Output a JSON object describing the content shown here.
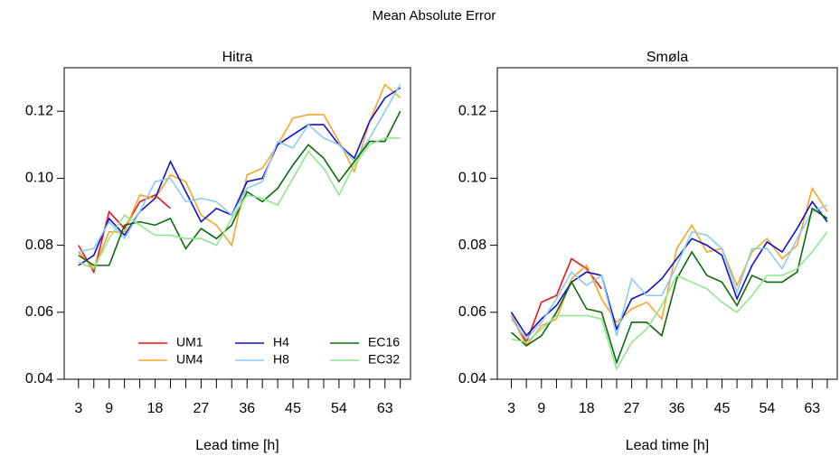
{
  "title": "Mean Absolute Error",
  "chart_data": [
    {
      "type": "line",
      "title": "Hitra",
      "xlabel": "Lead time [h]",
      "x": [
        3,
        6,
        9,
        12,
        15,
        18,
        21,
        24,
        27,
        30,
        33,
        36,
        39,
        42,
        45,
        48,
        51,
        54,
        57,
        60,
        63,
        66
      ],
      "xlim": [
        0.2,
        68
      ],
      "ylim": [
        0.04,
        0.133
      ],
      "xticks": [
        3,
        9,
        18,
        27,
        36,
        45,
        54,
        63
      ],
      "xminorticks": [
        6,
        12,
        15,
        21,
        24,
        30,
        33,
        39,
        42,
        48,
        51,
        57,
        60,
        66
      ],
      "yticks": [
        0.04,
        0.06,
        0.08,
        {
          "value": 0.1,
          "label": "0.10"
        },
        0.12
      ],
      "legend": "bottom",
      "series": [
        {
          "name": "UM1",
          "color": "#e8141a",
          "values": [
            0.08,
            0.072,
            0.09,
            0.085,
            0.093,
            0.095,
            0.091,
            null,
            null,
            null,
            null,
            null,
            null,
            null,
            null,
            null,
            null,
            null,
            null,
            null,
            null,
            null
          ]
        },
        {
          "name": "UM4",
          "color": "#f5a623",
          "values": [
            0.078,
            0.073,
            0.084,
            0.084,
            0.095,
            0.094,
            0.101,
            0.099,
            0.089,
            0.086,
            0.08,
            0.101,
            0.103,
            0.11,
            0.118,
            0.119,
            0.119,
            0.111,
            0.102,
            0.117,
            0.128,
            0.124
          ]
        },
        {
          "name": "H4",
          "color": "#1010d0",
          "values": [
            0.074,
            0.077,
            0.088,
            0.083,
            0.09,
            0.094,
            0.105,
            0.096,
            0.087,
            0.091,
            0.089,
            0.099,
            0.1,
            0.11,
            0.113,
            0.116,
            0.116,
            0.11,
            0.106,
            0.117,
            0.124,
            0.127
          ]
        },
        {
          "name": "H8",
          "color": "#8ccaf0",
          "values": [
            0.078,
            0.079,
            0.087,
            0.082,
            0.09,
            0.099,
            0.1,
            0.093,
            0.094,
            0.093,
            0.089,
            0.097,
            0.099,
            0.111,
            0.109,
            0.116,
            0.112,
            0.11,
            0.105,
            0.112,
            0.12,
            0.128
          ]
        },
        {
          "name": "EC16",
          "color": "#0a6a0a",
          "values": [
            0.077,
            0.074,
            0.074,
            0.086,
            0.087,
            0.086,
            0.088,
            0.079,
            0.085,
            0.082,
            0.086,
            0.096,
            0.093,
            0.097,
            0.104,
            0.11,
            0.106,
            0.099,
            0.105,
            0.111,
            0.111,
            0.12
          ]
        },
        {
          "name": "EC32",
          "color": "#8ee68e",
          "values": [
            0.075,
            0.073,
            0.082,
            0.089,
            0.086,
            0.083,
            0.083,
            0.082,
            0.082,
            0.08,
            0.088,
            0.095,
            0.094,
            0.092,
            0.1,
            0.108,
            0.103,
            0.095,
            0.104,
            0.11,
            0.112,
            0.112
          ]
        }
      ]
    },
    {
      "type": "line",
      "title": "Smøla",
      "xlabel": "Lead time [h]",
      "x": [
        3,
        6,
        9,
        12,
        15,
        18,
        21,
        24,
        27,
        30,
        33,
        36,
        39,
        42,
        45,
        48,
        51,
        54,
        57,
        60,
        63,
        66
      ],
      "xlim": [
        0.2,
        68
      ],
      "ylim": [
        0.04,
        0.133
      ],
      "xticks": [
        3,
        9,
        18,
        27,
        36,
        45,
        54,
        63
      ],
      "xminorticks": [
        6,
        12,
        15,
        21,
        24,
        30,
        33,
        39,
        42,
        48,
        51,
        57,
        60,
        66
      ],
      "yticks": [
        0.04,
        0.06,
        0.08,
        {
          "value": 0.1,
          "label": "0.10"
        },
        0.12
      ],
      "series": [
        {
          "color": "#e8141a",
          "values": [
            0.059,
            0.051,
            0.063,
            0.065,
            0.076,
            0.073,
            0.067,
            null,
            null,
            null,
            null,
            null,
            null,
            null,
            null,
            null,
            null,
            null,
            null,
            null,
            null,
            null
          ]
        },
        {
          "color": "#f5a623",
          "values": [
            0.059,
            0.05,
            0.056,
            0.058,
            0.07,
            0.074,
            0.064,
            0.057,
            0.061,
            0.063,
            0.058,
            0.079,
            0.086,
            0.078,
            0.079,
            0.068,
            0.078,
            0.082,
            0.076,
            0.08,
            0.097,
            0.09
          ]
        },
        {
          "color": "#1010d0",
          "values": [
            0.06,
            0.053,
            0.058,
            0.062,
            0.069,
            0.072,
            0.071,
            0.055,
            0.064,
            0.066,
            0.07,
            0.076,
            0.082,
            0.08,
            0.077,
            0.064,
            0.074,
            0.081,
            0.078,
            0.085,
            0.093,
            0.087
          ]
        },
        {
          "color": "#8ccaf0",
          "values": [
            0.058,
            0.052,
            0.057,
            0.064,
            0.072,
            0.068,
            0.071,
            0.053,
            0.07,
            0.065,
            0.065,
            0.074,
            0.084,
            0.083,
            0.079,
            0.066,
            0.079,
            0.079,
            0.073,
            0.082,
            0.09,
            0.092
          ]
        },
        {
          "color": "#0a6a0a",
          "values": [
            0.054,
            0.05,
            0.053,
            0.06,
            0.069,
            0.061,
            0.06,
            0.045,
            0.057,
            0.057,
            0.053,
            0.07,
            0.078,
            0.071,
            0.069,
            0.062,
            0.071,
            0.069,
            0.069,
            0.072,
            0.091,
            0.088
          ]
        },
        {
          "color": "#8ee68e",
          "values": [
            0.052,
            0.051,
            0.055,
            0.059,
            0.059,
            0.059,
            0.058,
            0.043,
            0.051,
            0.055,
            0.062,
            0.071,
            0.069,
            0.067,
            0.063,
            0.06,
            0.065,
            0.071,
            0.071,
            0.073,
            0.078,
            0.084
          ]
        }
      ]
    }
  ]
}
